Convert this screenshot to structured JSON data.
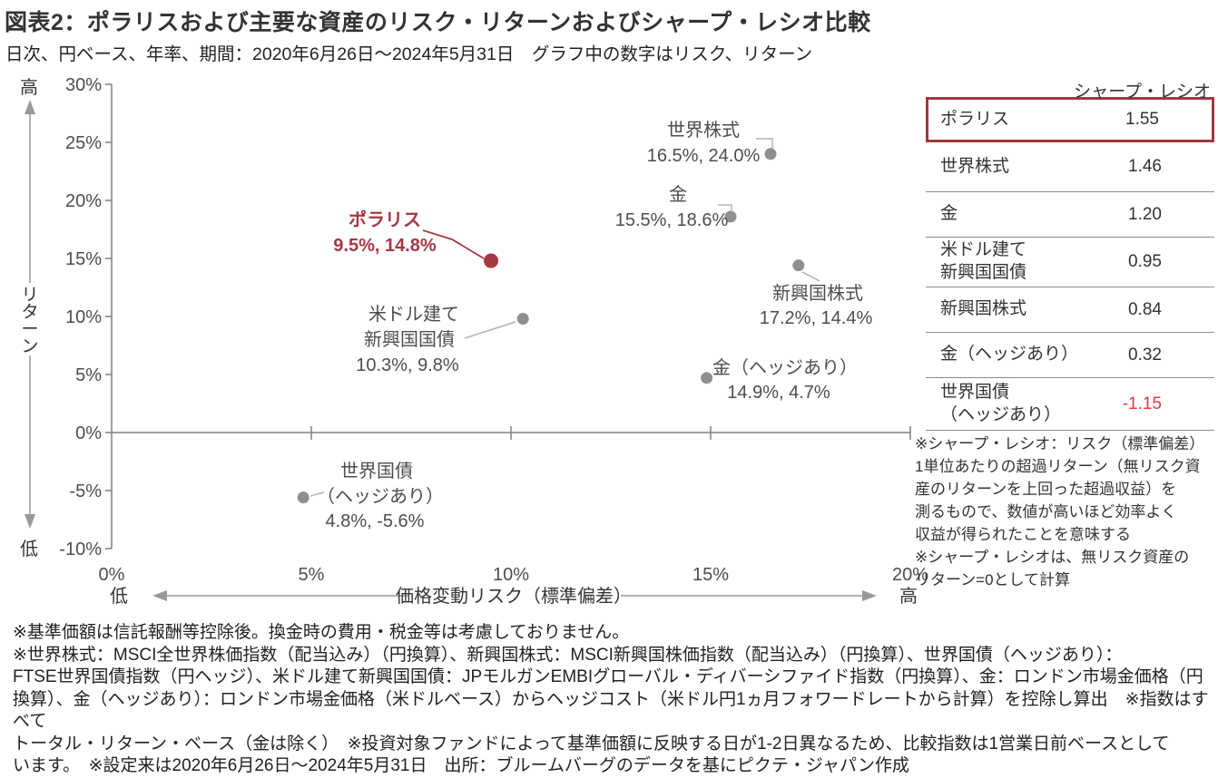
{
  "title": "図表2：ポラリスおよび主要な資産のリスク・リターンおよびシャープ・レシオ比較",
  "subtitle": "日次、円ベース、年率、期間：2020年6月26日～2024年5月31日　グラフ中の数字はリスク、リターン",
  "colors": {
    "polaris_red": "#a63843",
    "point_gray": "#8f8f8f",
    "leader_gray": "#b3b3b3",
    "axis_gray": "#808080",
    "rail_gray": "#999999",
    "label_text": "#4d4d4d",
    "rail_text": "#333333",
    "table_highlight_border": "#9c3a40",
    "negative_red": "#e8383f"
  },
  "chart_data": {
    "type": "scatter",
    "xlabel": "価格変動リスク（標準偏差）",
    "ylabel": "リターン",
    "xlim": [
      0,
      20
    ],
    "ylim": [
      -10,
      30
    ],
    "x_low_label": "低",
    "x_high_label": "高",
    "y_high_label": "高",
    "y_low_label": "低",
    "x_ticks": [
      {
        "value": 0,
        "label": "0%"
      },
      {
        "value": 5,
        "label": "5%"
      },
      {
        "value": 10,
        "label": "10%"
      },
      {
        "value": 15,
        "label": "15%"
      },
      {
        "value": 20,
        "label": "20%"
      }
    ],
    "y_ticks": [
      {
        "value": 30,
        "label": "30%"
      },
      {
        "value": 25,
        "label": "25%"
      },
      {
        "value": 20,
        "label": "20%"
      },
      {
        "value": 15,
        "label": "15%"
      },
      {
        "value": 10,
        "label": "10%"
      },
      {
        "value": 5,
        "label": "5%"
      },
      {
        "value": 0,
        "label": "0%"
      },
      {
        "value": -5,
        "label": "-5%"
      },
      {
        "value": -10,
        "label": "-10%"
      }
    ],
    "points": [
      {
        "name": "ポラリス",
        "name_lines": [
          "ポラリス"
        ],
        "risk": 9.5,
        "return": 14.8,
        "value_label": "9.5%, 14.8%",
        "highlight": true
      },
      {
        "name": "世界株式",
        "name_lines": [
          "世界株式"
        ],
        "risk": 16.5,
        "return": 24.0,
        "value_label": "16.5%, 24.0%"
      },
      {
        "name": "金",
        "name_lines": [
          "金"
        ],
        "risk": 15.5,
        "return": 18.6,
        "value_label": "15.5%, 18.6%"
      },
      {
        "name": "新興国株式",
        "name_lines": [
          "新興国株式"
        ],
        "risk": 17.2,
        "return": 14.4,
        "value_label": "17.2%, 14.4%"
      },
      {
        "name": "米ドル建て新興国国債",
        "name_lines": [
          "米ドル建て",
          "新興国国債"
        ],
        "risk": 10.3,
        "return": 9.8,
        "value_label": "10.3%, 9.8%"
      },
      {
        "name": "金（ヘッジあり）",
        "name_lines": [
          "金（ヘッジあり）"
        ],
        "risk": 14.9,
        "return": 4.7,
        "value_label": "14.9%, 4.7%"
      },
      {
        "name": "世界国債（ヘッジあり）",
        "name_lines": [
          "世界国債",
          "（ヘッジあり）"
        ],
        "risk": 4.8,
        "return": -5.6,
        "value_label": "4.8%, -5.6%"
      }
    ]
  },
  "table": {
    "header": "シャープ・レシオ",
    "rows": [
      {
        "name": "ポラリス",
        "value": "1.55",
        "highlight": true
      },
      {
        "name": "世界株式",
        "value": "1.46"
      },
      {
        "name": "金",
        "value": "1.20"
      },
      {
        "name": "米ドル建て\n新興国国債",
        "value": "0.95"
      },
      {
        "name": "新興国株式",
        "value": "0.84"
      },
      {
        "name": "金（ヘッジあり）",
        "value": "0.32"
      },
      {
        "name": "世界国債\n（ヘッジあり）",
        "value": "-1.15",
        "negative": true
      }
    ]
  },
  "side_note": "※シャープ・レシオ：リスク（標準偏差）\n1単位あたりの超過リターン（無リスク資\n産のリターンを上回った超過収益）を\n測るもので、数値が高いほど効率よく\n収益が得られたことを意味する\n※シャープ・レシオは、無リスク資産の\nリターン=0として計算",
  "footnote": "※基準価額は信託報酬等控除後。換金時の費用・税金等は考慮しておりません。\n※世界株式：MSCI全世界株価指数（配当込み）（円換算）、新興国株式：MSCI新興国株価指数（配当込み）（円換算）、世界国債（ヘッジあり）：\nFTSE世界国債指数（円ヘッジ）、米ドル建て新興国国債：JPモルガンEMBIグローバル・ディバーシファイド指数（円換算）、金：ロンドン市場金価格（円\n換算）、金（ヘッジあり）：ロンドン市場金価格（米ドルベース）からヘッジコスト（米ドル円1ヵ月フォワードレートから計算）を控除し算出　※指数はすべて\nトータル・リターン・ベース（金は除く）　※投資対象ファンドによって基準価額に反映する日が1-2日異なるため、比較指数は1営業日前ベースとして\nいます。　※設定来は2020年6月26日～2024年5月31日　出所：ブルームバーグのデータを基にピクテ・ジャパン作成"
}
